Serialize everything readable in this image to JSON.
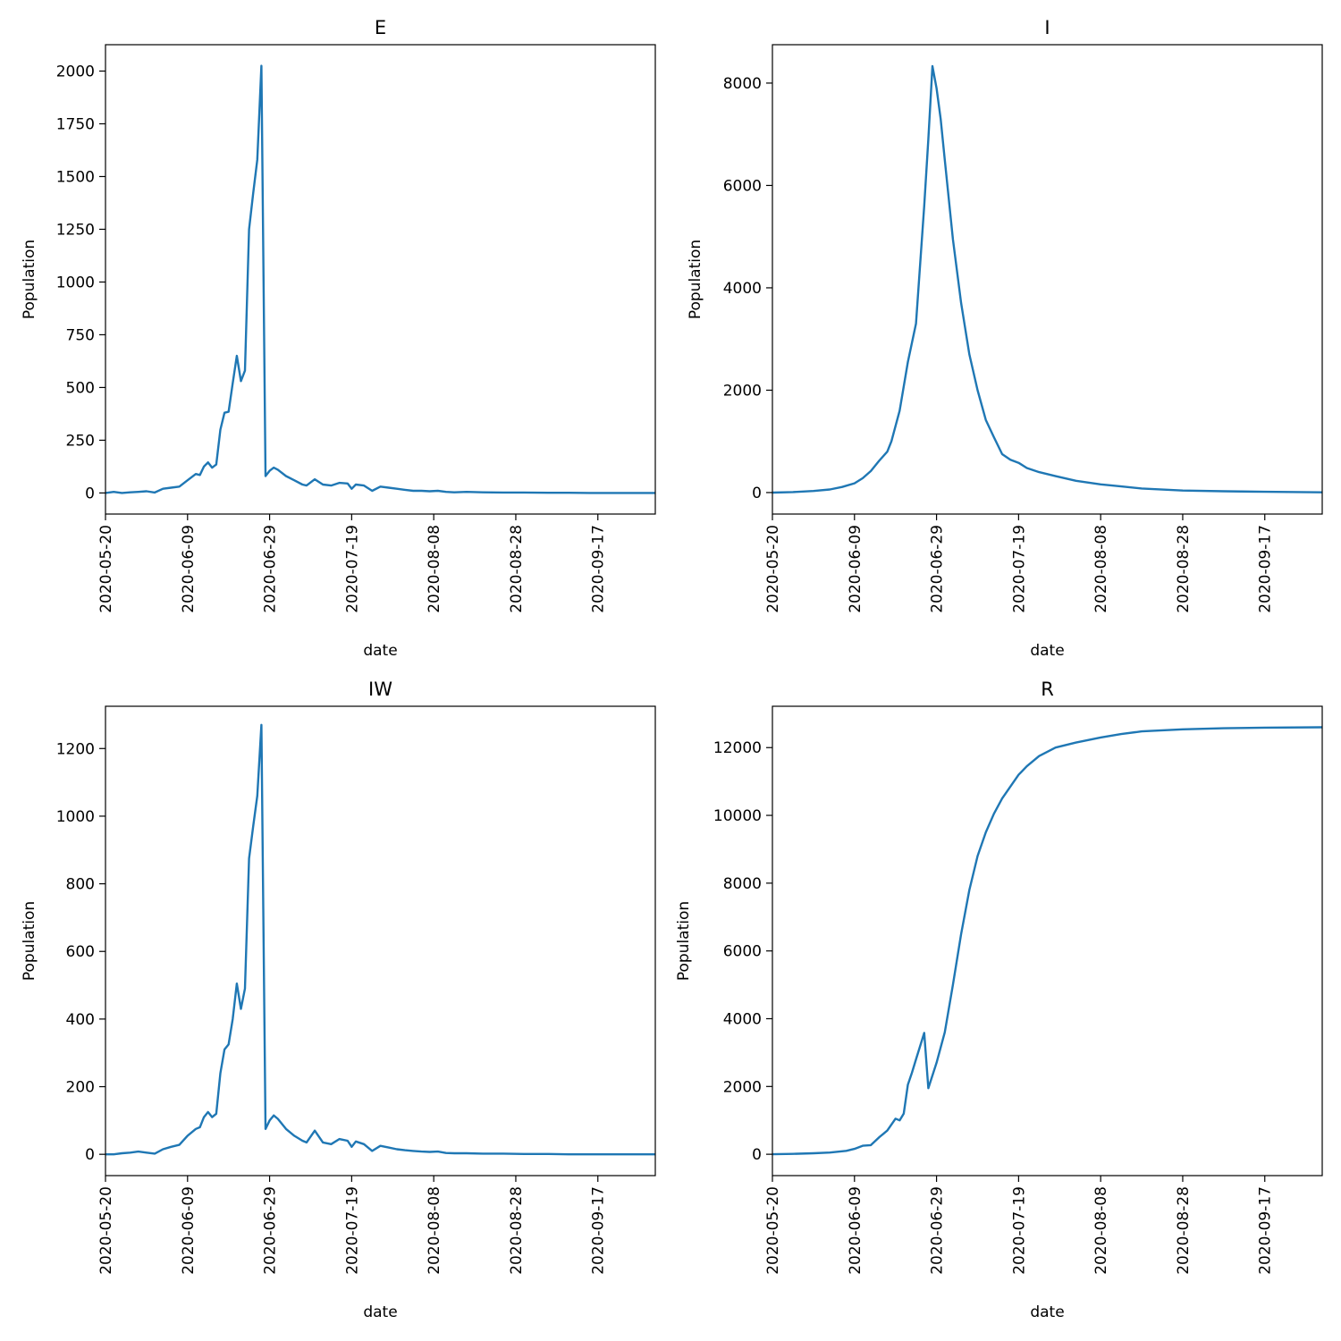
{
  "line_color": "#1f77b4",
  "chart_data": [
    {
      "type": "line",
      "title": "E",
      "xlabel": "date",
      "ylabel": "Population",
      "xlim": [
        "2020-05-20",
        "2020-10-01"
      ],
      "ylim": [
        -100,
        2125
      ],
      "xticks": [
        "2020-05-20",
        "2020-06-09",
        "2020-06-29",
        "2020-07-19",
        "2020-08-08",
        "2020-08-28",
        "2020-09-17"
      ],
      "yticks": [
        0,
        250,
        500,
        750,
        1000,
        1250,
        1500,
        1750,
        2000
      ],
      "grid": false,
      "series": [
        {
          "x": [
            "2020-05-20",
            "2020-05-22",
            "2020-05-24",
            "2020-05-26",
            "2020-05-28",
            "2020-05-30",
            "2020-06-01",
            "2020-06-03",
            "2020-06-05",
            "2020-06-07",
            "2020-06-09",
            "2020-06-11",
            "2020-06-12",
            "2020-06-13",
            "2020-06-14",
            "2020-06-15",
            "2020-06-16",
            "2020-06-17",
            "2020-06-18",
            "2020-06-19",
            "2020-06-20",
            "2020-06-21",
            "2020-06-22",
            "2020-06-23",
            "2020-06-24",
            "2020-06-25",
            "2020-06-26",
            "2020-06-27",
            "2020-06-28",
            "2020-06-29",
            "2020-06-30",
            "2020-07-01",
            "2020-07-03",
            "2020-07-05",
            "2020-07-07",
            "2020-07-08",
            "2020-07-10",
            "2020-07-12",
            "2020-07-14",
            "2020-07-16",
            "2020-07-18",
            "2020-07-19",
            "2020-07-20",
            "2020-07-22",
            "2020-07-24",
            "2020-07-26",
            "2020-07-28",
            "2020-07-30",
            "2020-08-01",
            "2020-08-03",
            "2020-08-05",
            "2020-08-07",
            "2020-08-09",
            "2020-08-11",
            "2020-08-13",
            "2020-08-16",
            "2020-08-20",
            "2020-08-25",
            "2020-08-30",
            "2020-09-05",
            "2020-09-10",
            "2020-09-15",
            "2020-09-20",
            "2020-09-25",
            "2020-10-01"
          ],
          "y": [
            0,
            5,
            0,
            3,
            5,
            8,
            2,
            20,
            25,
            30,
            60,
            90,
            85,
            125,
            145,
            120,
            135,
            300,
            380,
            385,
            520,
            650,
            530,
            580,
            1250,
            1420,
            1580,
            2025,
            80,
            105,
            120,
            110,
            80,
            60,
            40,
            35,
            65,
            40,
            35,
            48,
            45,
            20,
            40,
            35,
            10,
            30,
            25,
            20,
            15,
            10,
            10,
            8,
            10,
            5,
            3,
            5,
            3,
            2,
            2,
            1,
            1,
            0,
            0,
            0,
            0
          ]
        }
      ]
    },
    {
      "type": "line",
      "title": "I",
      "xlabel": "date",
      "ylabel": "Population",
      "xlim": [
        "2020-05-20",
        "2020-10-01"
      ],
      "ylim": [
        -420,
        8750
      ],
      "xticks": [
        "2020-05-20",
        "2020-06-09",
        "2020-06-29",
        "2020-07-19",
        "2020-08-08",
        "2020-08-28",
        "2020-09-17"
      ],
      "yticks": [
        0,
        2000,
        4000,
        6000,
        8000
      ],
      "grid": false,
      "series": [
        {
          "x": [
            "2020-05-20",
            "2020-05-25",
            "2020-05-30",
            "2020-06-03",
            "2020-06-06",
            "2020-06-09",
            "2020-06-11",
            "2020-06-13",
            "2020-06-15",
            "2020-06-17",
            "2020-06-18",
            "2020-06-20",
            "2020-06-22",
            "2020-06-24",
            "2020-06-26",
            "2020-06-27",
            "2020-06-28",
            "2020-06-29",
            "2020-06-30",
            "2020-07-01",
            "2020-07-03",
            "2020-07-05",
            "2020-07-07",
            "2020-07-09",
            "2020-07-11",
            "2020-07-13",
            "2020-07-15",
            "2020-07-17",
            "2020-07-19",
            "2020-07-21",
            "2020-07-24",
            "2020-07-28",
            "2020-08-02",
            "2020-08-08",
            "2020-08-13",
            "2020-08-18",
            "2020-08-28",
            "2020-09-07",
            "2020-09-17",
            "2020-10-01"
          ],
          "y": [
            0,
            10,
            30,
            60,
            110,
            180,
            280,
            420,
            620,
            800,
            1000,
            1600,
            2550,
            3300,
            5600,
            6900,
            8330,
            7900,
            7300,
            6500,
            4950,
            3700,
            2700,
            2000,
            1420,
            1080,
            750,
            640,
            580,
            480,
            400,
            320,
            230,
            160,
            120,
            80,
            40,
            25,
            15,
            5
          ]
        }
      ]
    },
    {
      "type": "line",
      "title": "IW",
      "xlabel": "date",
      "ylabel": "Population",
      "xlim": [
        "2020-05-20",
        "2020-10-01"
      ],
      "ylim": [
        -63,
        1325
      ],
      "xticks": [
        "2020-05-20",
        "2020-06-09",
        "2020-06-29",
        "2020-07-19",
        "2020-08-08",
        "2020-08-28",
        "2020-09-17"
      ],
      "yticks": [
        0,
        200,
        400,
        600,
        800,
        1000,
        1200
      ],
      "grid": false,
      "series": [
        {
          "x": [
            "2020-05-20",
            "2020-05-22",
            "2020-05-24",
            "2020-05-26",
            "2020-05-28",
            "2020-05-30",
            "2020-06-01",
            "2020-06-03",
            "2020-06-05",
            "2020-06-07",
            "2020-06-09",
            "2020-06-11",
            "2020-06-12",
            "2020-06-13",
            "2020-06-14",
            "2020-06-15",
            "2020-06-16",
            "2020-06-17",
            "2020-06-18",
            "2020-06-19",
            "2020-06-20",
            "2020-06-21",
            "2020-06-22",
            "2020-06-23",
            "2020-06-24",
            "2020-06-25",
            "2020-06-26",
            "2020-06-27",
            "2020-06-28",
            "2020-06-29",
            "2020-06-30",
            "2020-07-01",
            "2020-07-03",
            "2020-07-05",
            "2020-07-07",
            "2020-07-08",
            "2020-07-10",
            "2020-07-12",
            "2020-07-14",
            "2020-07-16",
            "2020-07-18",
            "2020-07-19",
            "2020-07-20",
            "2020-07-22",
            "2020-07-24",
            "2020-07-26",
            "2020-07-28",
            "2020-07-30",
            "2020-08-01",
            "2020-08-03",
            "2020-08-05",
            "2020-08-07",
            "2020-08-09",
            "2020-08-11",
            "2020-08-13",
            "2020-08-16",
            "2020-08-20",
            "2020-08-25",
            "2020-08-30",
            "2020-09-05",
            "2020-09-10",
            "2020-09-15",
            "2020-09-20",
            "2020-09-25",
            "2020-10-01"
          ],
          "y": [
            0,
            0,
            3,
            5,
            8,
            5,
            2,
            15,
            22,
            28,
            55,
            75,
            80,
            110,
            125,
            110,
            120,
            240,
            310,
            325,
            400,
            505,
            430,
            490,
            875,
            970,
            1060,
            1270,
            75,
            100,
            115,
            105,
            75,
            55,
            40,
            35,
            70,
            35,
            30,
            45,
            40,
            22,
            38,
            30,
            10,
            25,
            20,
            15,
            12,
            10,
            8,
            7,
            8,
            4,
            3,
            3,
            2,
            2,
            1,
            1,
            0,
            0,
            0,
            0,
            0
          ]
        }
      ]
    },
    {
      "type": "line",
      "title": "R",
      "xlabel": "date",
      "ylabel": "Population",
      "xlim": [
        "2020-05-20",
        "2020-10-01"
      ],
      "ylim": [
        -630,
        13220
      ],
      "xticks": [
        "2020-05-20",
        "2020-06-09",
        "2020-06-29",
        "2020-07-19",
        "2020-08-08",
        "2020-08-28",
        "2020-09-17"
      ],
      "yticks": [
        0,
        2000,
        4000,
        6000,
        8000,
        10000,
        12000
      ],
      "grid": false,
      "series": [
        {
          "x": [
            "2020-05-20",
            "2020-05-25",
            "2020-05-30",
            "2020-06-03",
            "2020-06-07",
            "2020-06-09",
            "2020-06-11",
            "2020-06-13",
            "2020-06-15",
            "2020-06-16",
            "2020-06-17",
            "2020-06-19",
            "2020-06-20",
            "2020-06-21",
            "2020-06-22",
            "2020-06-23",
            "2020-06-24",
            "2020-06-26",
            "2020-06-27",
            "2020-06-29",
            "2020-07-01",
            "2020-07-03",
            "2020-07-05",
            "2020-07-07",
            "2020-07-09",
            "2020-07-11",
            "2020-07-13",
            "2020-07-15",
            "2020-07-17",
            "2020-07-19",
            "2020-07-21",
            "2020-07-24",
            "2020-07-28",
            "2020-08-02",
            "2020-08-08",
            "2020-08-13",
            "2020-08-18",
            "2020-08-28",
            "2020-09-07",
            "2020-09-17",
            "2020-10-01"
          ],
          "y": [
            0,
            10,
            30,
            50,
            100,
            160,
            250,
            270,
            500,
            600,
            700,
            1050,
            1000,
            1200,
            2050,
            2400,
            2800,
            3580,
            1950,
            2700,
            3600,
            5000,
            6500,
            7800,
            8800,
            9500,
            10050,
            10500,
            10850,
            11200,
            11450,
            11750,
            12000,
            12150,
            12300,
            12400,
            12480,
            12540,
            12570,
            12590,
            12600
          ]
        }
      ]
    }
  ]
}
